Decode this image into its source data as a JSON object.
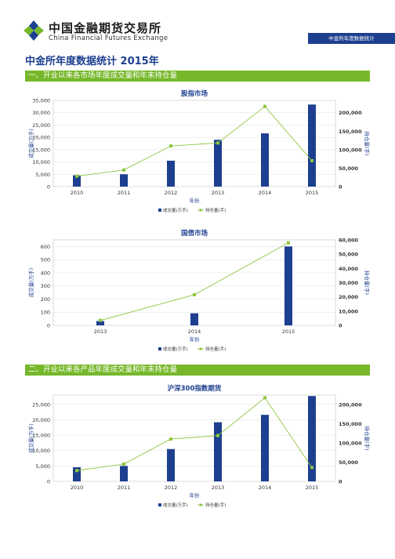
{
  "header": {
    "org_cn": "中国金融期货交易所",
    "org_en": "China Financial Futures Exchange",
    "tag": "中金所年度数据统计"
  },
  "main_title": "中金所年度数据统计 2015年",
  "sections": [
    {
      "title": "一、开业以来各市场年度成交量和年末持仓量"
    },
    {
      "title": "二、开业以来各产品年度成交量和年末持仓量"
    }
  ],
  "colors": {
    "brand": "#1d3f8f",
    "bar": "#1d3f8f",
    "line": "#8dc63f",
    "section": "#76b82a"
  },
  "chart_data": [
    {
      "type": "bar",
      "title": "股指市场",
      "xlabel": "年份",
      "ylabel": "成交量(万手)",
      "y2label": "持仓量(手)",
      "categories": [
        "2010",
        "2011",
        "2012",
        "2013",
        "2014",
        "2015"
      ],
      "series": [
        {
          "name": "成交量(万手)",
          "type": "bar",
          "axis": "left",
          "values": [
            4600,
            5000,
            10500,
            19000,
            21600,
            33300
          ]
        },
        {
          "name": "持仓量(手)",
          "type": "line",
          "axis": "right",
          "values": [
            28000,
            45000,
            110000,
            118000,
            217000,
            70000
          ]
        }
      ],
      "ylim": [
        0,
        35000
      ],
      "yticks": [
        "0",
        "5,000",
        "10,000",
        "15,000",
        "20,000",
        "25,000",
        "30,000",
        "35,000"
      ],
      "y2lim": [
        0,
        233333
      ],
      "y2ticks": [
        "0",
        "50,000",
        "100,000",
        "150,000",
        "200,000"
      ],
      "legend": "bottom",
      "grid": true
    },
    {
      "type": "bar",
      "title": "国债市场",
      "xlabel": "年份",
      "ylabel": "成交量(万手)",
      "y2label": "持仓量(手)",
      "categories": [
        "2013",
        "2014",
        "2015"
      ],
      "series": [
        {
          "name": "成交量(万手)",
          "type": "bar",
          "axis": "left",
          "values": [
            33,
            92,
            600
          ]
        },
        {
          "name": "持仓量(手)",
          "type": "line",
          "axis": "right",
          "values": [
            3500,
            21500,
            58000
          ]
        }
      ],
      "ylim": [
        0,
        650
      ],
      "yticks": [
        "0",
        "100",
        "200",
        "300",
        "400",
        "500",
        "600"
      ],
      "y2lim": [
        0,
        60000
      ],
      "y2ticks": [
        "0",
        "10,000",
        "20,000",
        "30,000",
        "40,000",
        "50,000",
        "60,000"
      ],
      "legend": "bottom",
      "grid": true
    },
    {
      "type": "bar",
      "title": "沪深300指数期货",
      "xlabel": "年份",
      "ylabel": "成交量(万手)",
      "y2label": "持仓量(手)",
      "categories": [
        "2010",
        "2011",
        "2012",
        "2013",
        "2014",
        "2015"
      ],
      "series": [
        {
          "name": "成交量(万手)",
          "type": "bar",
          "axis": "left",
          "values": [
            4600,
            5000,
            10500,
            19200,
            21600,
            27700
          ]
        },
        {
          "name": "持仓量(手)",
          "type": "line",
          "axis": "right",
          "values": [
            28000,
            45000,
            110000,
            119000,
            217000,
            36000
          ]
        }
      ],
      "ylim": [
        0,
        28000
      ],
      "yticks": [
        "0",
        "5,000",
        "10,000",
        "15,000",
        "20,000",
        "25,000"
      ],
      "y2lim": [
        0,
        224000
      ],
      "y2ticks": [
        "0",
        "50,000",
        "100,000",
        "150,000",
        "200,000"
      ],
      "legend": "bottom",
      "grid": true
    }
  ]
}
